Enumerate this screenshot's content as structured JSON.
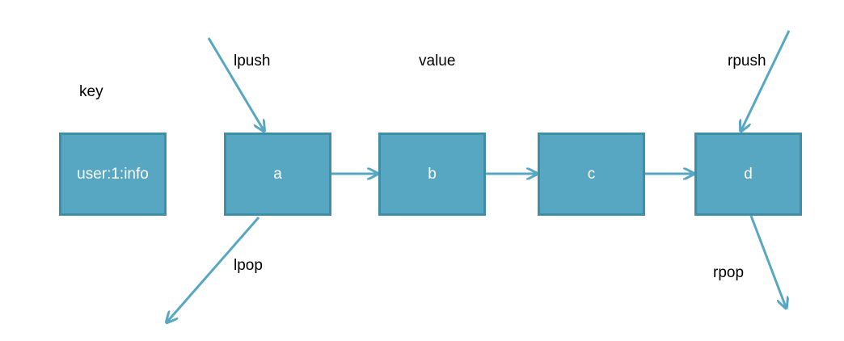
{
  "labels": {
    "key": "key",
    "value": "value",
    "lpush": "lpush",
    "rpush": "rpush",
    "lpop": "lpop",
    "rpop": "rpop"
  },
  "key_box": {
    "label": "user:1:info"
  },
  "list": {
    "items": [
      "a",
      "b",
      "c",
      "d"
    ]
  },
  "colors": {
    "node_fill": "#57a7c3",
    "node_border": "#3e8ea7",
    "arrow": "#57a7c3",
    "label_text": "#000000",
    "node_text": "#ffffff"
  }
}
